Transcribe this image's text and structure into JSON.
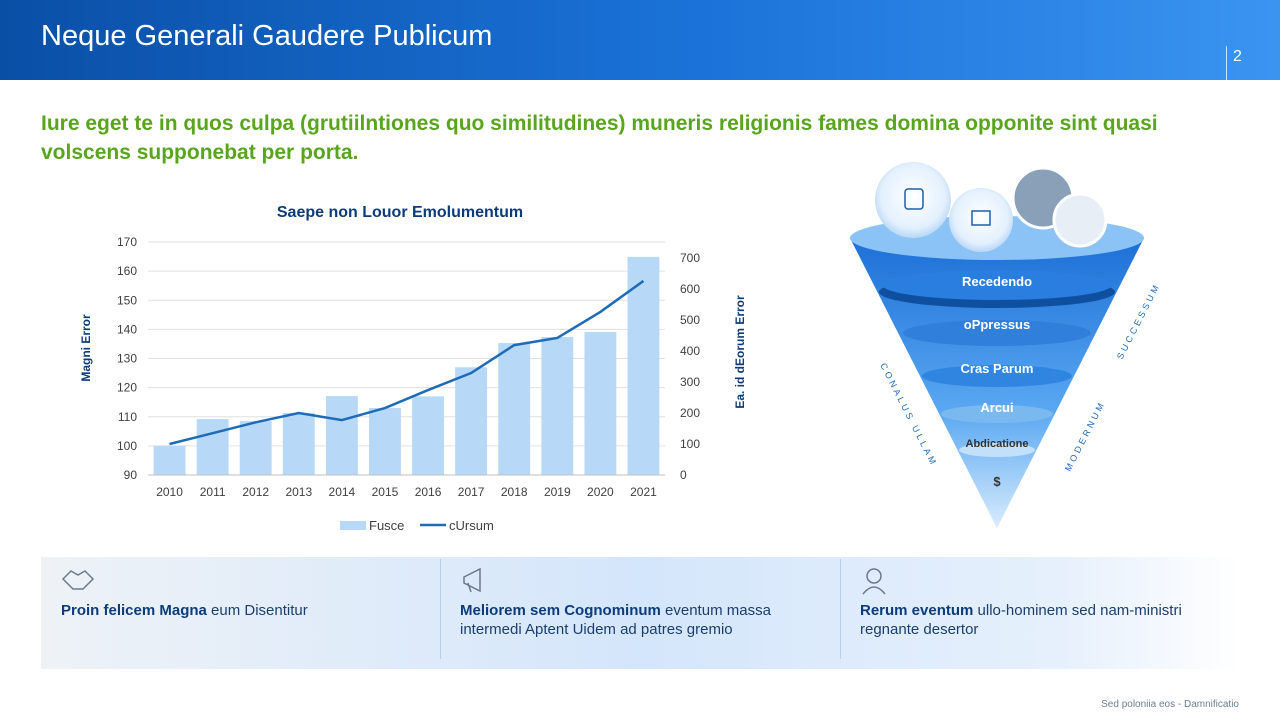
{
  "header": {
    "title": "Neque Generali Gaudere Publicum",
    "page": "2"
  },
  "lead": "Iure eget te in quos culpa (grutiilntiones quo similitudines) muneris religionis fames domina opponite sint quasi volscens supponebat per porta.",
  "chart_data": {
    "type": "bar",
    "title": "Saepe non Louor Emolumentum",
    "categories": [
      "2010",
      "2011",
      "2012",
      "2013",
      "2014",
      "2015",
      "2016",
      "2017",
      "2018",
      "2019",
      "2020",
      "2021"
    ],
    "series": [
      {
        "name": "Fusce",
        "color": "#b7d9f7",
        "values": [
          100,
          109.2,
          108.5,
          111.3,
          117.1,
          113,
          117,
          127,
          135.3,
          137.4,
          139.1,
          164.9
        ]
      },
      {
        "name": "cUrsum",
        "type": "line",
        "axis": "y2",
        "color": "#1f6bb8",
        "values": [
          100,
          135,
          170,
          200,
          177,
          216,
          274,
          329,
          419,
          442,
          526,
          626
        ]
      }
    ],
    "ylabel": "Magni Error",
    "y2label": "Ea. id dEorum Error",
    "ylim": [
      90,
      170
    ],
    "yticks": [
      90,
      100,
      110,
      120,
      130,
      140,
      150,
      160,
      170
    ],
    "y2lim": [
      0,
      700
    ],
    "y2ticks": [
      0,
      100,
      200,
      300,
      400,
      500,
      600,
      700
    ],
    "legend": "bottom",
    "grid": true
  },
  "funnel": {
    "layers": [
      "Recedendo",
      "oPpressus",
      "Cras Parum",
      "Arcui",
      "Abdicatione",
      "$"
    ],
    "left_label": "CONALUS ULLAM",
    "right_top_label": "SUCCESSUM",
    "right_bottom_label": "MODERNUM"
  },
  "cards": [
    {
      "bold": "Proin felicem Magna",
      "text": " eum Disentitur"
    },
    {
      "bold": "Meliorem sem Cognominum",
      "text": " eventum massa intermedi Aptent Uidem ad patres gremio"
    },
    {
      "bold": "Rerum eventum",
      "text": " ullo-hominem sed nam-ministri regnante desertor"
    }
  ],
  "footer": "Sed poloniia eos - Damnificatio"
}
